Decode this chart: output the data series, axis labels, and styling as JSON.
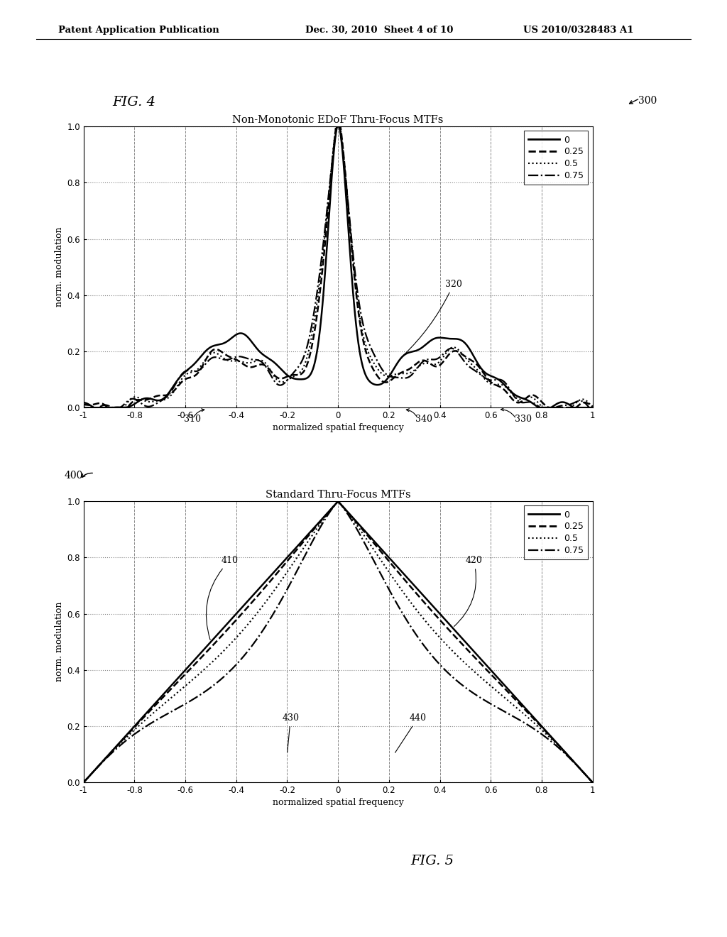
{
  "header_left": "Patent Application Publication",
  "header_mid": "Dec. 30, 2010  Sheet 4 of 10",
  "header_right": "US 2010/0328483 A1",
  "fig4_label": "FIG. 4",
  "fig5_label": "FIG. 5",
  "label_300": "300",
  "label_400": "400",
  "label_310": "310",
  "label_320": "320",
  "label_330": "330",
  "label_340": "340",
  "label_410": "410",
  "label_420": "420",
  "label_430": "430",
  "label_440": "440",
  "plot1_title": "Non-Monotonic EDoF Thru-Focus MTFs",
  "plot2_title": "Standard Thru-Focus MTFs",
  "xlabel": "normalized spatial frequency",
  "ylabel": "norm. modulation",
  "legend_labels": [
    "0",
    "0.25",
    "0.5",
    "0.75"
  ],
  "xlim": [
    -1,
    1
  ],
  "ylim": [
    0,
    1
  ],
  "background_color": "#ffffff",
  "line_color": "#000000"
}
